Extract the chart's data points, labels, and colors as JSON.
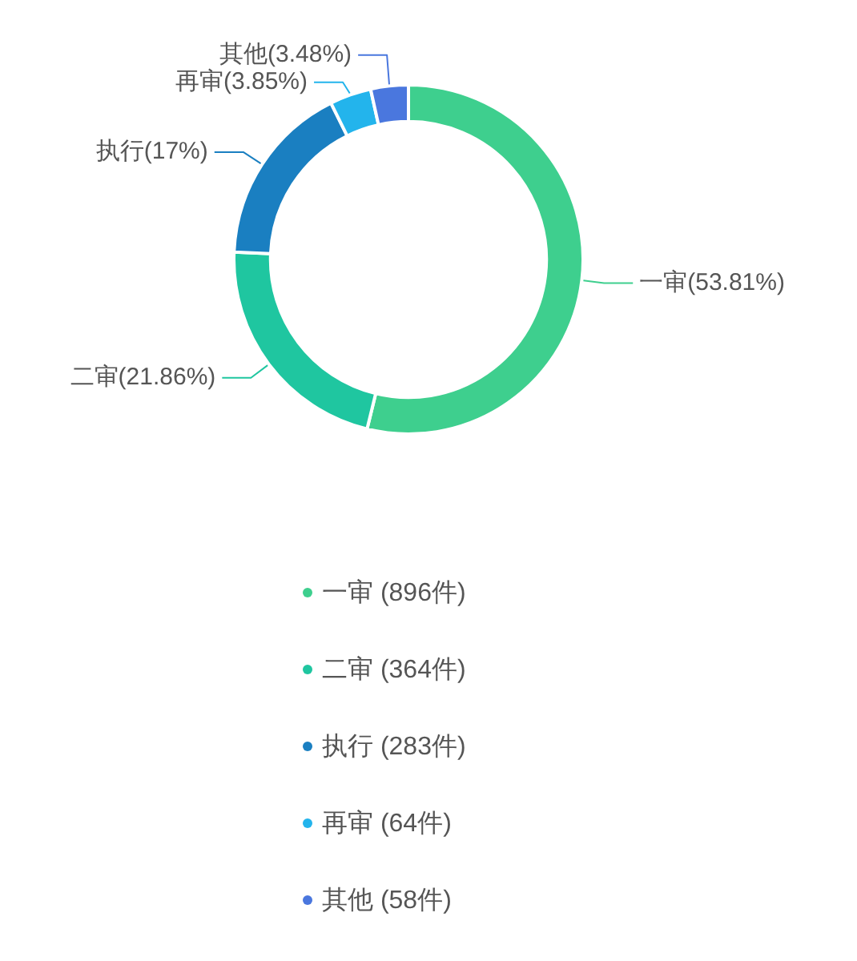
{
  "chart_data": {
    "type": "donut",
    "categories": [
      "一审 (896件)",
      "二审 (364件)",
      "执行 (283件)",
      "再审 (64件)",
      "其他 (58件)"
    ],
    "values": [
      896,
      364,
      283,
      64,
      58
    ],
    "colors": [
      "#3ecf8e",
      "#1fc6a0",
      "#1a7fc1",
      "#23b4ec",
      "#4a77de"
    ],
    "value_labels": [
      "一审(53.81%)",
      "二审(21.86%)",
      "执行(17%)",
      "再审(3.85%)",
      "其他(3.48%)"
    ],
    "legend": "bottom"
  }
}
